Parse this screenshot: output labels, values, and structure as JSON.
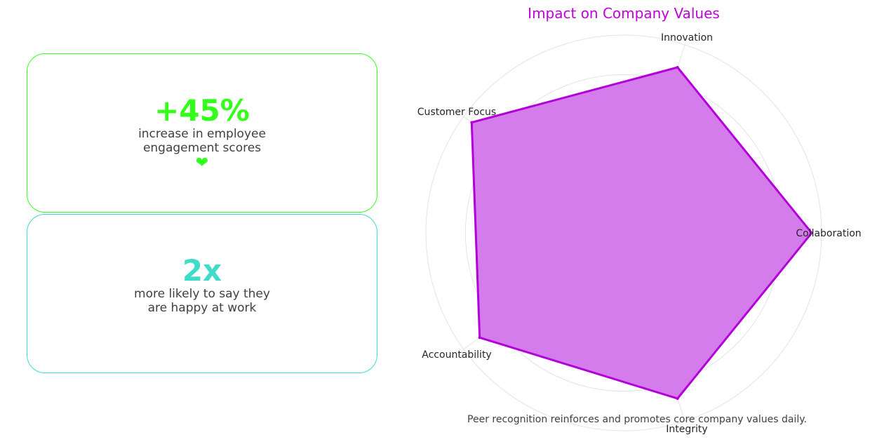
{
  "stats": [
    {
      "value": "+45%",
      "text_line1": "increase in employee",
      "text_line2": "engagement scores",
      "icon": "heart-icon",
      "color": "#33ff1a"
    },
    {
      "value": "2x",
      "text_line1": "more likely to say they",
      "text_line2": "are happy at work",
      "color": "#3ddccb"
    }
  ],
  "chart_data": {
    "type": "radar",
    "title": "Impact on Company Values",
    "categories": [
      "Collaboration",
      "Innovation",
      "Customer Focus",
      "Accountability",
      "Integrity"
    ],
    "series": [
      {
        "values": [
          95,
          88,
          95,
          90,
          88
        ]
      }
    ],
    "rlim": [
      0,
      100
    ],
    "grid": true,
    "stroke_color": "#b300d9",
    "fill_color": "#d57ced"
  },
  "caption": "Peer recognition reinforces and promotes core company values daily."
}
